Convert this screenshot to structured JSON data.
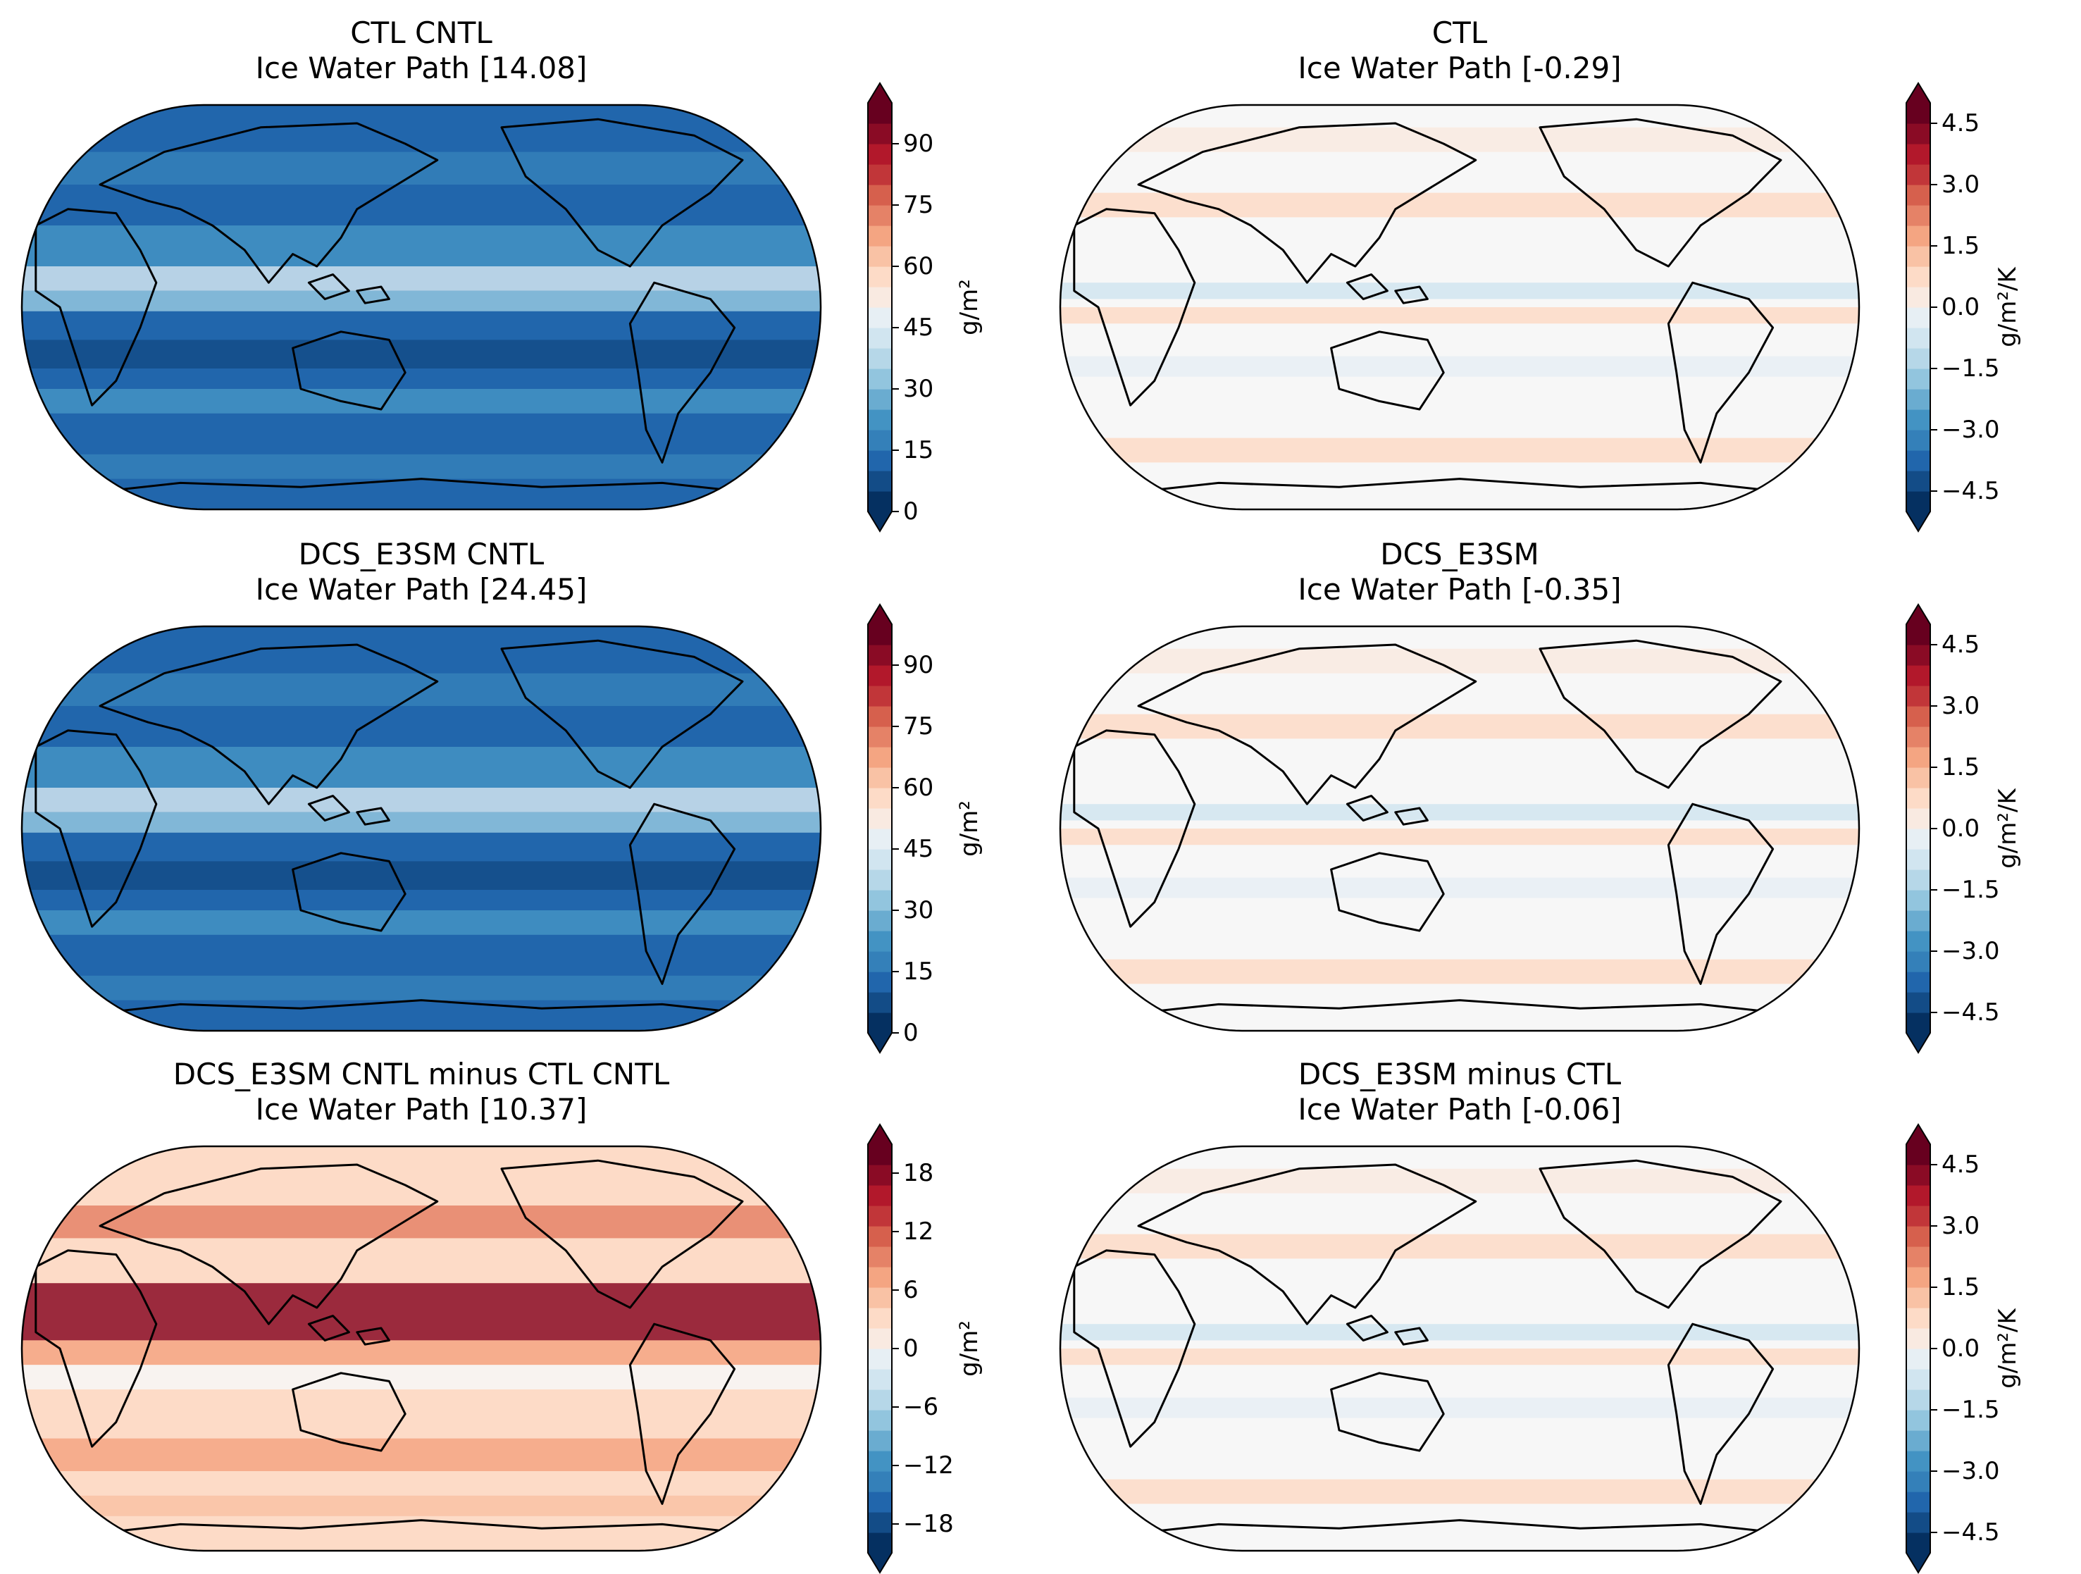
{
  "palettes": {
    "rdbu_r": [
      "#053061",
      "#134c87",
      "#2166ac",
      "#3480b9",
      "#4393c3",
      "#6aacd0",
      "#92c5de",
      "#b6d7e8",
      "#d1e5f0",
      "#e7eff4",
      "#f7f7f7",
      "#f9eae1",
      "#fddbc7",
      "#f9c2a5",
      "#f4a582",
      "#e58267",
      "#d6604d",
      "#c13639",
      "#b2182b",
      "#8a0b25",
      "#67001f"
    ]
  },
  "panels": [
    {
      "title_line1": "CTL CNTL",
      "title_line2": "Ice Water Path [14.08]",
      "units": "g/m²",
      "ticks": [
        "0",
        "15",
        "30",
        "45",
        "60",
        "75",
        "90"
      ],
      "vmin": 0,
      "vmax": 100,
      "extend": "both",
      "fill": "low"
    },
    {
      "title_line1": "CTL",
      "title_line2": "Ice Water Path [-0.29]",
      "units": "g/m²/K",
      "ticks": [
        "−4.5",
        "−3.0",
        "−1.5",
        "0.0",
        "1.5",
        "3.0",
        "4.5"
      ],
      "vmin": -5,
      "vmax": 5,
      "extend": "both",
      "fill": "neutral"
    },
    {
      "title_line1": "DCS_E3SM CNTL",
      "title_line2": "Ice Water Path [24.45]",
      "units": "g/m²",
      "ticks": [
        "0",
        "15",
        "30",
        "45",
        "60",
        "75",
        "90"
      ],
      "vmin": 0,
      "vmax": 100,
      "extend": "both",
      "fill": "low"
    },
    {
      "title_line1": "DCS_E3SM",
      "title_line2": "Ice Water Path [-0.35]",
      "units": "g/m²/K",
      "ticks": [
        "−4.5",
        "−3.0",
        "−1.5",
        "0.0",
        "1.5",
        "3.0",
        "4.5"
      ],
      "vmin": -5,
      "vmax": 5,
      "extend": "both",
      "fill": "neutral"
    },
    {
      "title_line1": "DCS_E3SM CNTL minus CTL CNTL",
      "title_line2": "Ice Water Path [10.37]",
      "units": "g/m²",
      "ticks": [
        "−18",
        "−12",
        "−6",
        "0",
        "6",
        "12",
        "18"
      ],
      "vmin": -21,
      "vmax": 21,
      "extend": "both",
      "fill": "high"
    },
    {
      "title_line1": "DCS_E3SM minus CTL",
      "title_line2": "Ice Water Path [-0.06]",
      "units": "g/m²/K",
      "ticks": [
        "−4.5",
        "−3.0",
        "−1.5",
        "0.0",
        "1.5",
        "3.0",
        "4.5"
      ],
      "vmin": -5,
      "vmax": 5,
      "extend": "both",
      "fill": "neutral"
    }
  ]
}
